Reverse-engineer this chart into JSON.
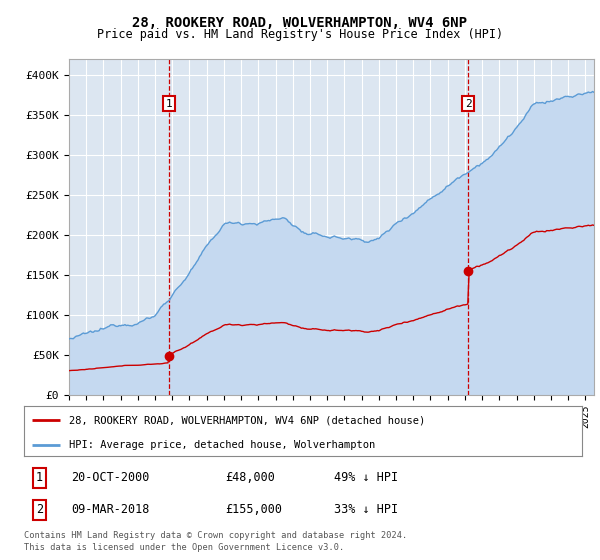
{
  "title": "28, ROOKERY ROAD, WOLVERHAMPTON, WV4 6NP",
  "subtitle": "Price paid vs. HM Land Registry's House Price Index (HPI)",
  "ylabel_ticks": [
    "£0",
    "£50K",
    "£100K",
    "£150K",
    "£200K",
    "£250K",
    "£300K",
    "£350K",
    "£400K"
  ],
  "ytick_values": [
    0,
    50000,
    100000,
    150000,
    200000,
    250000,
    300000,
    350000,
    400000
  ],
  "ylim": [
    0,
    420000
  ],
  "xlim_start": 1995.0,
  "xlim_end": 2025.5,
  "sale1_year": 2000.8,
  "sale1_price": 48000,
  "sale2_year": 2018.2,
  "sale2_price": 155000,
  "legend_label_red": "28, ROOKERY ROAD, WOLVERHAMPTON, WV4 6NP (detached house)",
  "legend_label_blue": "HPI: Average price, detached house, Wolverhampton",
  "sale1_text": "20-OCT-2000",
  "sale1_amount": "£48,000",
  "sale1_hpi": "49% ↓ HPI",
  "sale2_text": "09-MAR-2018",
  "sale2_amount": "£155,000",
  "sale2_hpi": "33% ↓ HPI",
  "footer1": "Contains HM Land Registry data © Crown copyright and database right 2024.",
  "footer2": "This data is licensed under the Open Government Licence v3.0.",
  "background_color": "#dce6f1",
  "red_color": "#cc0000",
  "blue_color": "#5b9bd5",
  "blue_fill_color": "#c5d9f0"
}
